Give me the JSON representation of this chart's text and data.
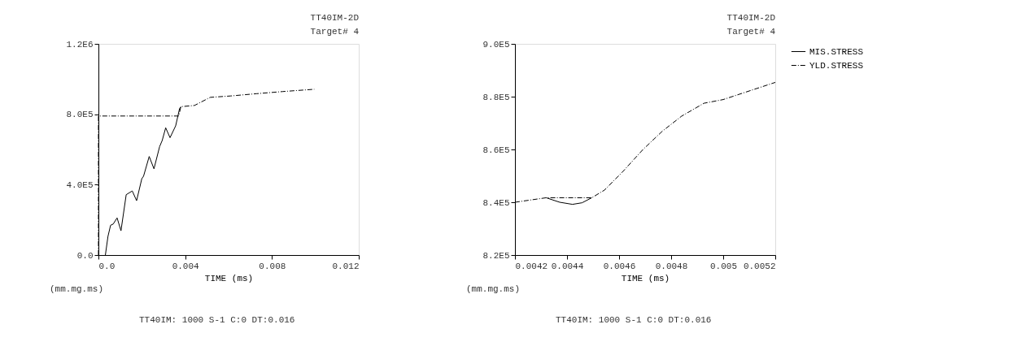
{
  "chart_data": [
    {
      "type": "line",
      "title": "TT40IM-2D",
      "subtitle": "Target#  4",
      "xlabel": "TIME (ms)",
      "annotations": [
        "(mm.mg.ms)",
        "TT40IM: 1000 S-1  C:0    DT:0.016"
      ],
      "legend": "right",
      "grid": false,
      "xlim": [
        0,
        0.012
      ],
      "xticks": [
        {
          "value": 0,
          "label": "0.0"
        },
        0.004,
        0.008,
        0.012
      ],
      "ylim": [
        0,
        1200000
      ],
      "yticks": [
        {
          "value": 0,
          "label": "0.0"
        },
        {
          "value": 400000,
          "label": "4.0E5"
        },
        {
          "value": 800000,
          "label": "8.0E5"
        },
        {
          "value": 1200000,
          "label": "1.2E6"
        }
      ],
      "series": [
        {
          "name": "MIS.STRESS",
          "color": "#000000",
          "line_style": "solid",
          "x": [
            0.00032,
            0.00044,
            0.00056,
            0.00068,
            0.00086,
            0.00104,
            0.00128,
            0.00156,
            0.00176,
            0.002,
            0.00208,
            0.00234,
            0.00256,
            0.00282,
            0.00294,
            0.0031,
            0.0033,
            0.00356,
            0.00374,
            0.0038
          ],
          "values": [
            0,
            106000,
            169000,
            176000,
            211000,
            138000,
            343000,
            364000,
            309000,
            434000,
            448000,
            560000,
            490000,
            616000,
            651000,
            723000,
            667000,
            734000,
            832000,
            843000
          ]
        },
        {
          "name": "YLD.STRESS",
          "color": "#000000",
          "line_style": "dashed",
          "x": [
            0,
            0,
            0.0037,
            0.0038,
            0.00443,
            0.00515,
            0.0061,
            0.0073,
            0.0085,
            0.00995
          ],
          "values": [
            0,
            790000,
            790000,
            843000,
            850000,
            896000,
            904000,
            917000,
            929000,
            942000
          ]
        }
      ]
    },
    {
      "type": "line",
      "title": "TT40IM-2D",
      "subtitle": "Target#  4",
      "xlabel": "TIME (ms)",
      "annotations": [
        "(mm.mg.ms)",
        "TT40IM: 1000 S-1  C:0    DT:0.016"
      ],
      "legend": "right",
      "grid": false,
      "xlim": [
        0.0042,
        0.0052
      ],
      "xticks": [
        0.0042,
        0.0044,
        0.0046,
        0.0048,
        0.005,
        0.0052
      ],
      "ylim": [
        820000,
        900000
      ],
      "yticks": [
        {
          "value": 820000,
          "label": "8.2E5"
        },
        {
          "value": 840000,
          "label": "8.4E5"
        },
        {
          "value": 860000,
          "label": "8.6E5"
        },
        {
          "value": 880000,
          "label": "8.8E5"
        },
        {
          "value": 900000,
          "label": "9.0E5"
        }
      ],
      "series": [
        {
          "name": "MIS.STRESS",
          "color": "#000000",
          "line_style": "solid",
          "x": [
            0.00432,
            0.004372,
            0.004421,
            0.004458,
            0.004495
          ],
          "values": [
            841700,
            840000,
            839200,
            839800,
            841700
          ]
        },
        {
          "name": "YLD.STRESS",
          "color": "#000000",
          "line_style": "dashed",
          "x": [
            0.0042,
            0.00432,
            0.004495,
            0.004544,
            0.004618,
            0.004692,
            0.004766,
            0.00484,
            0.004926,
            0.005,
            0.005086,
            0.0052
          ],
          "values": [
            840000,
            841700,
            841700,
            844600,
            852000,
            860000,
            866900,
            872600,
            877500,
            878900,
            881700,
            885400
          ]
        }
      ]
    }
  ]
}
